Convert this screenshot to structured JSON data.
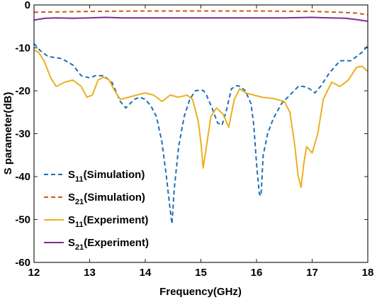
{
  "chart_data": {
    "type": "line",
    "title": "",
    "xlabel": "Frequency(GHz)",
    "ylabel": "S parameter(dB)",
    "xlim": [
      12,
      18
    ],
    "ylim": [
      -60,
      0
    ],
    "xticks": [
      12,
      13,
      14,
      15,
      16,
      17,
      18
    ],
    "yticks": [
      0,
      -10,
      -20,
      -30,
      -40,
      -50,
      -60
    ],
    "xtick_labels": [
      "12",
      "13",
      "14",
      "15",
      "16",
      "17",
      "18"
    ],
    "ytick_labels": [
      "0",
      "-10",
      "-20",
      "-30",
      "-40",
      "-50",
      "-60"
    ],
    "grid": false,
    "legend_position": "bottom-left",
    "series": [
      {
        "name": "S11(Simulation)",
        "legend_main": "S",
        "legend_sub": "11",
        "legend_tail": "(Simulation)",
        "color": "#1f6fb5",
        "style": "dashed",
        "x": [
          12.0,
          12.1,
          12.25,
          12.5,
          12.7,
          12.85,
          13.0,
          13.1,
          13.25,
          13.4,
          13.55,
          13.65,
          13.8,
          13.9,
          14.0,
          14.1,
          14.2,
          14.3,
          14.38,
          14.45,
          14.48,
          14.52,
          14.6,
          14.7,
          14.8,
          14.9,
          15.0,
          15.05,
          15.1,
          15.2,
          15.3,
          15.38,
          15.45,
          15.55,
          15.65,
          15.7,
          15.8,
          15.9,
          15.95,
          16.0,
          16.05,
          16.08,
          16.12,
          16.2,
          16.3,
          16.45,
          16.6,
          16.75,
          16.85,
          16.95,
          17.05,
          17.15,
          17.3,
          17.5,
          17.7,
          17.8,
          17.9,
          18.0
        ],
        "y": [
          -9.0,
          -10.5,
          -12.0,
          -12.5,
          -14.0,
          -16.5,
          -17.0,
          -16.5,
          -16.5,
          -18.0,
          -22.5,
          -24.0,
          -22.0,
          -21.5,
          -22.0,
          -23.5,
          -26.0,
          -32.0,
          -40.0,
          -48.0,
          -51.0,
          -43.0,
          -33.0,
          -26.0,
          -22.0,
          -20.0,
          -19.8,
          -20.0,
          -21.0,
          -24.0,
          -27.5,
          -28.0,
          -25.0,
          -19.5,
          -18.8,
          -19.0,
          -20.0,
          -23.0,
          -28.0,
          -37.0,
          -44.0,
          -44.5,
          -35.0,
          -30.0,
          -26.5,
          -23.0,
          -21.0,
          -19.0,
          -19.0,
          -19.5,
          -20.5,
          -19.0,
          -16.0,
          -13.0,
          -13.0,
          -12.0,
          -11.0,
          -9.5
        ]
      },
      {
        "name": "S21(Simulation)",
        "legend_main": "S",
        "legend_sub": "21",
        "legend_tail": "(Simulation)",
        "color": "#d9541a",
        "style": "dashed",
        "x": [
          12.0,
          13.0,
          14.0,
          15.0,
          16.0,
          17.0,
          17.5,
          17.8,
          18.0
        ],
        "y": [
          -1.7,
          -1.5,
          -1.4,
          -1.4,
          -1.4,
          -1.5,
          -1.7,
          -1.9,
          -2.3
        ]
      },
      {
        "name": "S11(Experiment)",
        "legend_main": "S",
        "legend_sub": "11",
        "legend_tail": "(Experiment)",
        "color": "#edb01f",
        "style": "solid",
        "x": [
          12.0,
          12.08,
          12.18,
          12.3,
          12.4,
          12.55,
          12.7,
          12.85,
          12.95,
          13.05,
          13.15,
          13.25,
          13.35,
          13.45,
          13.55,
          13.7,
          13.85,
          14.0,
          14.15,
          14.3,
          14.45,
          14.6,
          14.75,
          14.85,
          14.95,
          15.0,
          15.04,
          15.1,
          15.18,
          15.28,
          15.4,
          15.5,
          15.6,
          15.7,
          15.8,
          15.95,
          16.1,
          16.3,
          16.5,
          16.6,
          16.68,
          16.75,
          16.8,
          16.85,
          16.9,
          17.0,
          17.1,
          17.2,
          17.35,
          17.5,
          17.65,
          17.8,
          17.9,
          18.0
        ],
        "y": [
          -10.5,
          -11.0,
          -13.0,
          -17.0,
          -19.0,
          -18.0,
          -17.5,
          -19.0,
          -21.5,
          -21.0,
          -17.5,
          -16.8,
          -17.5,
          -20.0,
          -22.0,
          -21.5,
          -21.0,
          -20.5,
          -21.0,
          -22.5,
          -21.0,
          -21.5,
          -21.0,
          -22.0,
          -27.0,
          -32.0,
          -38.0,
          -33.0,
          -26.0,
          -24.0,
          -25.5,
          -28.5,
          -22.0,
          -19.5,
          -20.5,
          -21.0,
          -21.5,
          -21.8,
          -22.5,
          -25.0,
          -32.0,
          -40.0,
          -42.5,
          -37.0,
          -33.0,
          -34.5,
          -30.0,
          -22.0,
          -18.0,
          -19.0,
          -17.5,
          -14.5,
          -14.3,
          -15.5
        ]
      },
      {
        "name": "S21(Experiment)",
        "legend_main": "S",
        "legend_sub": "21",
        "legend_tail": "(Experiment)",
        "color": "#7e2f8e",
        "style": "solid",
        "x": [
          12.0,
          12.2,
          12.4,
          12.7,
          13.0,
          13.3,
          13.6,
          14.0,
          14.5,
          15.0,
          15.5,
          16.0,
          16.5,
          17.0,
          17.3,
          17.6,
          17.8,
          17.9,
          18.0
        ],
        "y": [
          -3.5,
          -3.1,
          -3.0,
          -3.1,
          -3.0,
          -2.9,
          -3.0,
          -3.0,
          -3.0,
          -3.0,
          -3.0,
          -3.0,
          -3.0,
          -2.9,
          -3.0,
          -3.1,
          -3.4,
          -3.6,
          -3.8
        ]
      }
    ]
  }
}
